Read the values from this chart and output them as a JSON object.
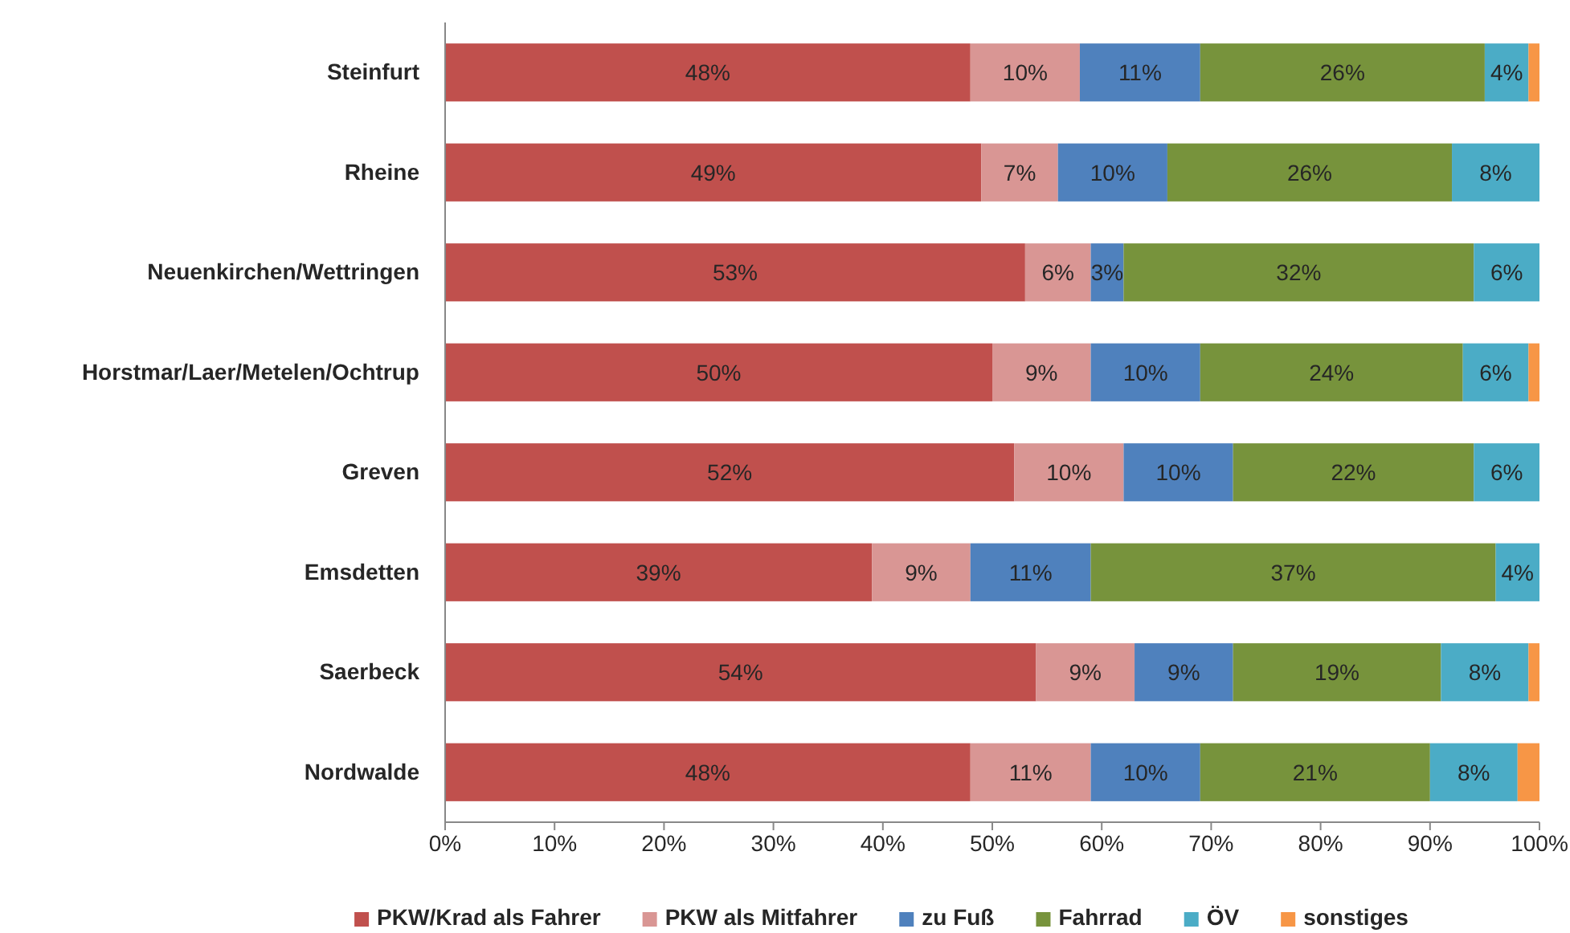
{
  "chart_data": {
    "type": "bar",
    "orientation": "horizontal",
    "stacked": true,
    "categories": [
      "Steinfurt",
      "Rheine",
      "Neuenkirchen/Wettringen",
      "Horstmar/Laer/Metelen/Ochtrup",
      "Greven",
      "Emsdetten",
      "Saerbeck",
      "Nordwalde"
    ],
    "series": [
      {
        "name": "PKW/Krad als Fahrer",
        "color": "#c0504d",
        "values": [
          48,
          49,
          53,
          50,
          52,
          39,
          54,
          48
        ],
        "value_labels": [
          "48%",
          "49%",
          "53%",
          "50%",
          "52%",
          "39%",
          "54%",
          "48%"
        ]
      },
      {
        "name": "PKW als Mitfahrer",
        "color": "#d99694",
        "values": [
          10,
          7,
          6,
          9,
          10,
          9,
          9,
          11
        ],
        "value_labels": [
          "10%",
          "7%",
          "6%",
          "9%",
          "10%",
          "9%",
          "9%",
          "11%"
        ]
      },
      {
        "name": "zu Fuß",
        "color": "#4f81bd",
        "values": [
          11,
          10,
          3,
          10,
          10,
          11,
          9,
          10
        ],
        "value_labels": [
          "11%",
          "10%",
          "3%",
          "10%",
          "10%",
          "11%",
          "9%",
          "10%"
        ]
      },
      {
        "name": "Fahrrad",
        "color": "#77933c",
        "values": [
          26,
          26,
          32,
          24,
          22,
          37,
          19,
          21
        ],
        "value_labels": [
          "26%",
          "26%",
          "32%",
          "24%",
          "22%",
          "37%",
          "19%",
          "21%"
        ]
      },
      {
        "name": "ÖV",
        "color": "#4bacc6",
        "values": [
          4,
          8,
          6,
          6,
          6,
          4,
          8,
          8
        ],
        "value_labels": [
          "4%",
          "8%",
          "6%",
          "6%",
          "6%",
          "4%",
          "8%",
          "8%"
        ]
      },
      {
        "name": "sonstiges",
        "color": "#f79646",
        "values": [
          1,
          0,
          0,
          1,
          0,
          0,
          1,
          2
        ]
      }
    ],
    "xlim": [
      0,
      100
    ],
    "xticks": [
      {
        "value": 0,
        "label": "0%"
      },
      {
        "value": 10,
        "label": "10%"
      },
      {
        "value": 20,
        "label": "20%"
      },
      {
        "value": 30,
        "label": "30%"
      },
      {
        "value": 40,
        "label": "40%"
      },
      {
        "value": 50,
        "label": "50%"
      },
      {
        "value": 60,
        "label": "60%"
      },
      {
        "value": 70,
        "label": "70%"
      },
      {
        "value": 80,
        "label": "80%"
      },
      {
        "value": 90,
        "label": "90%"
      },
      {
        "value": 100,
        "label": "100%"
      }
    ],
    "legend": "bottom"
  }
}
